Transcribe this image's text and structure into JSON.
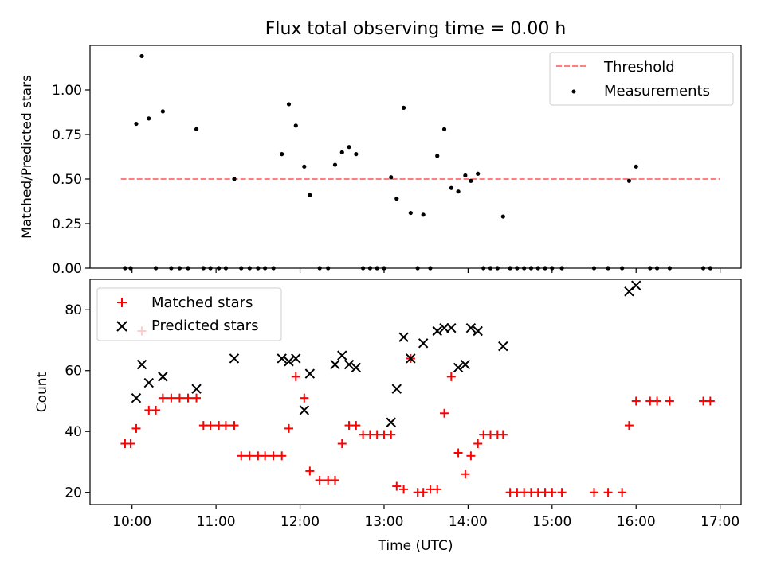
{
  "chart_data": [
    {
      "type": "scatter",
      "title": "Flux total observing time = 0.00 h",
      "xlabel": "",
      "ylabel": "Matched/Predicted stars",
      "xlim": [
        "09:30",
        "17:15"
      ],
      "ylim": [
        0,
        1.25
      ],
      "x_ticks": [
        "10:00",
        "11:00",
        "12:00",
        "13:00",
        "14:00",
        "15:00",
        "16:00",
        "17:00"
      ],
      "y_ticks": [
        "0.00",
        "0.25",
        "0.50",
        "0.75",
        "1.00"
      ],
      "grid": false,
      "legend_position": "top-right",
      "threshold": {
        "name": "Threshold",
        "value": 0.5,
        "x_range": [
          "09:52",
          "17:00"
        ],
        "color": "#ff7f7f",
        "style": "dashed"
      },
      "series": [
        {
          "name": "Measurements",
          "marker": "dot",
          "color": "#000000",
          "points": [
            [
              "09:55",
              0
            ],
            [
              "09:59",
              0
            ],
            [
              "10:03",
              0.81
            ],
            [
              "10:07",
              1.19
            ],
            [
              "10:12",
              0.84
            ],
            [
              "10:17",
              0
            ],
            [
              "10:22",
              0.88
            ],
            [
              "10:28",
              0
            ],
            [
              "10:34",
              0
            ],
            [
              "10:40",
              0
            ],
            [
              "10:46",
              0.78
            ],
            [
              "10:51",
              0
            ],
            [
              "10:56",
              0
            ],
            [
              "11:02",
              0
            ],
            [
              "11:07",
              0
            ],
            [
              "11:13",
              0.5
            ],
            [
              "11:18",
              0
            ],
            [
              "11:24",
              0
            ],
            [
              "11:30",
              0
            ],
            [
              "11:35",
              0
            ],
            [
              "11:41",
              0
            ],
            [
              "11:47",
              0.64
            ],
            [
              "11:52",
              0.92
            ],
            [
              "11:57",
              0.8
            ],
            [
              "12:03",
              0.57
            ],
            [
              "12:07",
              0.41
            ],
            [
              "12:14",
              0
            ],
            [
              "12:20",
              0
            ],
            [
              "12:25",
              0.58
            ],
            [
              "12:30",
              0.65
            ],
            [
              "12:35",
              0.68
            ],
            [
              "12:40",
              0.64
            ],
            [
              "12:45",
              0
            ],
            [
              "12:50",
              0
            ],
            [
              "12:55",
              0
            ],
            [
              "13:00",
              0
            ],
            [
              "13:05",
              0.51
            ],
            [
              "13:09",
              0.39
            ],
            [
              "13:14",
              0.9
            ],
            [
              "13:19",
              0.31
            ],
            [
              "13:24",
              0
            ],
            [
              "13:28",
              0.3
            ],
            [
              "13:33",
              0
            ],
            [
              "13:38",
              0.63
            ],
            [
              "13:43",
              0.78
            ],
            [
              "13:48",
              0.45
            ],
            [
              "13:53",
              0.43
            ],
            [
              "13:58",
              0.52
            ],
            [
              "14:02",
              0.49
            ],
            [
              "14:07",
              0.53
            ],
            [
              "14:11",
              0
            ],
            [
              "14:16",
              0
            ],
            [
              "14:21",
              0
            ],
            [
              "14:25",
              0.29
            ],
            [
              "14:30",
              0
            ],
            [
              "14:35",
              0
            ],
            [
              "14:40",
              0
            ],
            [
              "14:45",
              0
            ],
            [
              "14:50",
              0
            ],
            [
              "14:55",
              0
            ],
            [
              "15:00",
              0
            ],
            [
              "15:07",
              0
            ],
            [
              "15:30",
              0
            ],
            [
              "15:40",
              0
            ],
            [
              "15:50",
              0
            ],
            [
              "15:55",
              0.49
            ],
            [
              "16:00",
              0.57
            ],
            [
              "16:10",
              0
            ],
            [
              "16:15",
              0
            ],
            [
              "16:24",
              0
            ],
            [
              "16:48",
              0
            ],
            [
              "16:53",
              0
            ]
          ]
        }
      ]
    },
    {
      "type": "scatter",
      "title": "",
      "xlabel": "Time (UTC)",
      "ylabel": "Count",
      "xlim": [
        "09:30",
        "17:15"
      ],
      "ylim": [
        16,
        90
      ],
      "x_ticks": [
        "10:00",
        "11:00",
        "12:00",
        "13:00",
        "14:00",
        "15:00",
        "16:00",
        "17:00"
      ],
      "y_ticks": [
        "20",
        "40",
        "60",
        "80"
      ],
      "grid": false,
      "legend_position": "top-left",
      "series": [
        {
          "name": "Matched stars",
          "marker": "plus",
          "color": "#ff0000",
          "points": [
            [
              "09:55",
              36
            ],
            [
              "09:59",
              36
            ],
            [
              "10:03",
              41
            ],
            [
              "10:07",
              73
            ],
            [
              "10:12",
              47
            ],
            [
              "10:17",
              47
            ],
            [
              "10:22",
              51
            ],
            [
              "10:28",
              51
            ],
            [
              "10:34",
              51
            ],
            [
              "10:40",
              51
            ],
            [
              "10:46",
              51
            ],
            [
              "10:51",
              42
            ],
            [
              "10:56",
              42
            ],
            [
              "11:02",
              42
            ],
            [
              "11:07",
              42
            ],
            [
              "11:13",
              42
            ],
            [
              "11:18",
              32
            ],
            [
              "11:24",
              32
            ],
            [
              "11:30",
              32
            ],
            [
              "11:35",
              32
            ],
            [
              "11:41",
              32
            ],
            [
              "11:47",
              32
            ],
            [
              "11:52",
              41
            ],
            [
              "11:57",
              58
            ],
            [
              "12:03",
              51
            ],
            [
              "12:07",
              27
            ],
            [
              "12:14",
              24
            ],
            [
              "12:20",
              24
            ],
            [
              "12:25",
              24
            ],
            [
              "12:30",
              36
            ],
            [
              "12:35",
              42
            ],
            [
              "12:40",
              42
            ],
            [
              "12:45",
              39
            ],
            [
              "12:50",
              39
            ],
            [
              "12:55",
              39
            ],
            [
              "13:00",
              39
            ],
            [
              "13:05",
              39
            ],
            [
              "13:09",
              22
            ],
            [
              "13:14",
              21
            ],
            [
              "13:19",
              64
            ],
            [
              "13:24",
              20
            ],
            [
              "13:28",
              20
            ],
            [
              "13:33",
              21
            ],
            [
              "13:38",
              21
            ],
            [
              "13:43",
              46
            ],
            [
              "13:48",
              58
            ],
            [
              "13:53",
              33
            ],
            [
              "13:58",
              26
            ],
            [
              "14:02",
              32
            ],
            [
              "14:07",
              36
            ],
            [
              "14:11",
              39
            ],
            [
              "14:16",
              39
            ],
            [
              "14:21",
              39
            ],
            [
              "14:25",
              39
            ],
            [
              "14:30",
              20
            ],
            [
              "14:35",
              20
            ],
            [
              "14:40",
              20
            ],
            [
              "14:45",
              20
            ],
            [
              "14:50",
              20
            ],
            [
              "14:55",
              20
            ],
            [
              "15:00",
              20
            ],
            [
              "15:07",
              20
            ],
            [
              "15:30",
              20
            ],
            [
              "15:40",
              20
            ],
            [
              "15:50",
              20
            ],
            [
              "15:55",
              42
            ],
            [
              "16:00",
              50
            ],
            [
              "16:10",
              50
            ],
            [
              "16:15",
              50
            ],
            [
              "16:24",
              50
            ],
            [
              "16:48",
              50
            ],
            [
              "16:53",
              50
            ]
          ]
        },
        {
          "name": "Predicted stars",
          "marker": "x",
          "color": "#000000",
          "points": [
            [
              "10:03",
              51
            ],
            [
              "10:07",
              62
            ],
            [
              "10:12",
              56
            ],
            [
              "10:22",
              58
            ],
            [
              "10:46",
              54
            ],
            [
              "11:13",
              64
            ],
            [
              "11:47",
              64
            ],
            [
              "11:52",
              63
            ],
            [
              "11:57",
              64
            ],
            [
              "12:03",
              47
            ],
            [
              "12:07",
              59
            ],
            [
              "12:25",
              62
            ],
            [
              "12:30",
              65
            ],
            [
              "12:35",
              62
            ],
            [
              "12:40",
              61
            ],
            [
              "13:05",
              43
            ],
            [
              "13:09",
              54
            ],
            [
              "13:14",
              71
            ],
            [
              "13:19",
              64
            ],
            [
              "13:28",
              69
            ],
            [
              "13:38",
              73
            ],
            [
              "13:43",
              74
            ],
            [
              "13:48",
              74
            ],
            [
              "13:53",
              61
            ],
            [
              "13:58",
              62
            ],
            [
              "14:02",
              74
            ],
            [
              "14:07",
              73
            ],
            [
              "14:25",
              68
            ],
            [
              "15:55",
              86
            ],
            [
              "16:00",
              88
            ]
          ]
        }
      ]
    }
  ]
}
